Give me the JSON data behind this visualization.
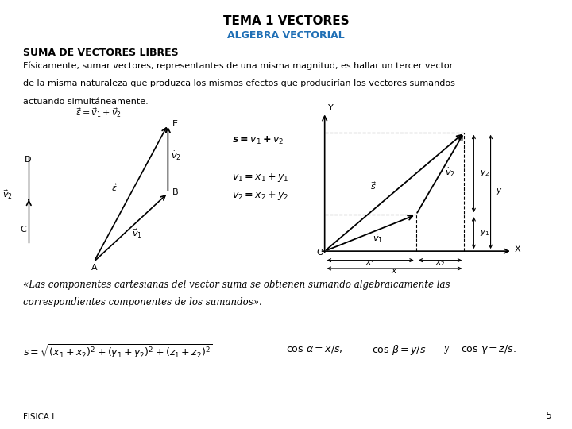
{
  "title": "TEMA 1 VECTORES",
  "subtitle": "ALGEBRA VECTORIAL",
  "subtitle_color": "#1F6FB5",
  "section_title": "SUMA DE VECTORES LIBRES",
  "paragraph_line1": "Físicamente, sumar vectores, representantes de una misma magnitud, es hallar un tercer vector",
  "paragraph_line2": "de la misma naturaleza que produzca los mismos efectos que producirían los vectores sumandos",
  "paragraph_line3": "actuando simultáneamente.",
  "italic_quote_line1": "«Las componentes cartesianas del vector suma se obtienen sumando algebraicamente las",
  "italic_quote_line2": "correspondientes componentes de los sumandos».",
  "page_number": "5",
  "footer": "FISICA I",
  "background_color": "#FFFFFF"
}
